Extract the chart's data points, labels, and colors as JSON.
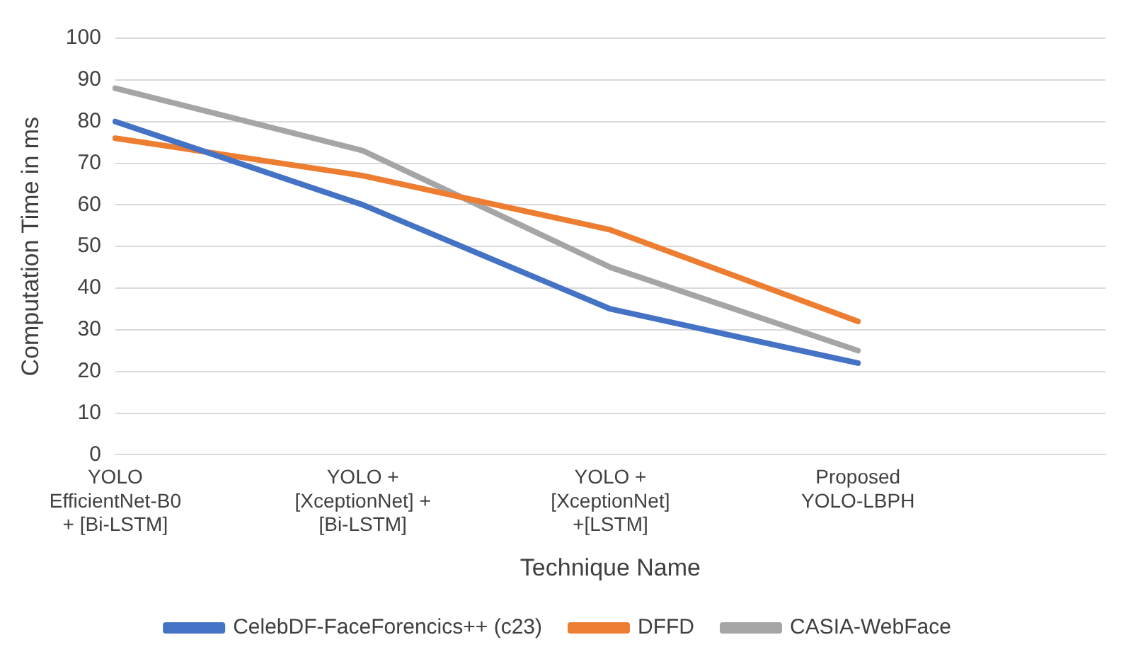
{
  "chart_data": {
    "type": "line",
    "xlabel": "Technique Name",
    "ylabel": "Computation Time in ms",
    "categories": [
      "YOLO EfficientNet-B0 + [Bi-LSTM]",
      "YOLO + [XceptionNet] + [Bi-LSTM]",
      "YOLO + [XceptionNet] +[LSTM]",
      "Proposed YOLO-LBPH",
      null
    ],
    "series": [
      {
        "name": "CelebDF-FaceForencics++ (c23)",
        "color": "#4472c4",
        "values": [
          80,
          60,
          35,
          22,
          null
        ]
      },
      {
        "name": "DFFD",
        "color": "#ed7d31",
        "values": [
          76,
          67,
          54,
          32,
          null
        ]
      },
      {
        "name": "CASIA-WebFace",
        "color": "#a5a5a5",
        "values": [
          88,
          73,
          45,
          25,
          null
        ]
      }
    ],
    "ylim": [
      0,
      100
    ],
    "yticks": [
      0,
      10,
      20,
      30,
      40,
      50,
      60,
      70,
      80,
      90,
      100
    ],
    "grid": "y",
    "legend": "bottom",
    "marker": "none",
    "line_style": "solid"
  }
}
